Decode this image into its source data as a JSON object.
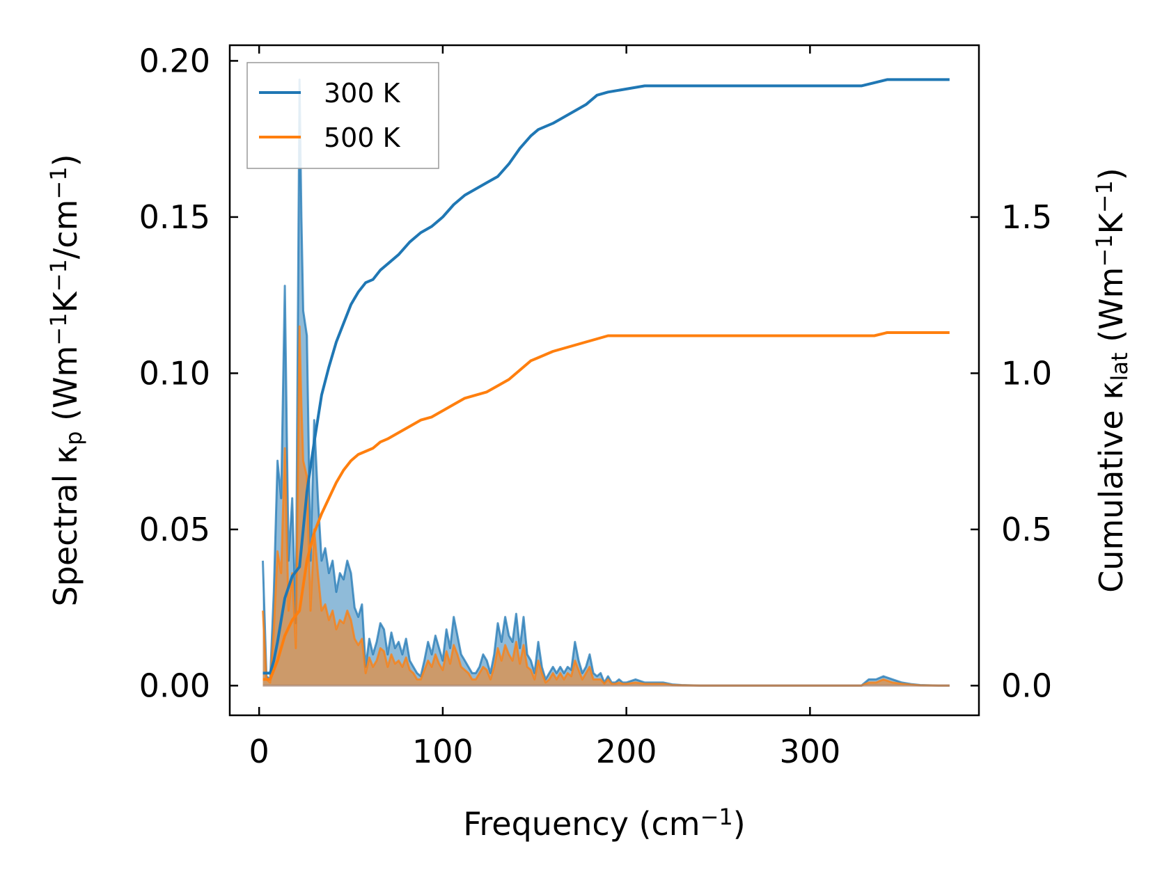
{
  "chart_data": {
    "type": "line",
    "xlabel": "Frequency (cm",
    "xlabel_sup": "−1",
    "xlabel_end": ")",
    "ylabel_left": {
      "a": "Spectral κ",
      "sub": "p",
      "b": " (Wm",
      "sup1": "−1",
      "c": "K",
      "sup2": "−1",
      "d": "/cm",
      "sup3": "−1",
      "e": ")"
    },
    "ylabel_right": {
      "a": "Cumulative κ",
      "sub": "lat",
      "b": " (Wm",
      "sup1": "−1",
      "c": "K",
      "sup2": "−1",
      "d": ")"
    },
    "xlim": [
      -16,
      392
    ],
    "ylim_left": [
      -0.0095,
      0.205
    ],
    "ylim_right": [
      -0.095,
      2.05
    ],
    "xticks": [
      0,
      100,
      200,
      300
    ],
    "xtick_labels": [
      "0",
      "100",
      "200",
      "300"
    ],
    "yticks_left": [
      0.0,
      0.05,
      0.1,
      0.15,
      0.2
    ],
    "ytick_labels_left": [
      "0.00",
      "0.05",
      "0.10",
      "0.15",
      "0.20"
    ],
    "yticks_right": [
      0.0,
      0.5,
      1.0,
      1.5
    ],
    "ytick_labels_right": [
      "0.0",
      "0.5",
      "1.0",
      "1.5"
    ],
    "legend": {
      "position": "top-left",
      "entries": [
        "300 K",
        "500 K"
      ]
    },
    "colors": {
      "s300": "#1f77b4",
      "s500": "#ff7f0e"
    },
    "spectral": {
      "x": [
        2,
        4,
        6,
        8,
        10,
        12,
        14,
        16,
        18,
        20,
        22,
        23,
        24,
        26,
        28,
        30,
        32,
        34,
        36,
        38,
        40,
        42,
        44,
        46,
        48,
        50,
        52,
        54,
        56,
        58,
        60,
        62,
        64,
        66,
        68,
        70,
        72,
        74,
        76,
        78,
        80,
        82,
        84,
        86,
        88,
        90,
        92,
        94,
        96,
        98,
        100,
        102,
        104,
        106,
        108,
        110,
        112,
        114,
        116,
        118,
        120,
        122,
        124,
        126,
        128,
        130,
        132,
        134,
        136,
        138,
        140,
        142,
        144,
        146,
        148,
        150,
        152,
        154,
        156,
        158,
        160,
        162,
        164,
        166,
        168,
        170,
        172,
        174,
        176,
        178,
        180,
        182,
        184,
        186,
        188,
        190,
        192,
        194,
        196,
        198,
        200,
        205,
        210,
        215,
        220,
        225,
        230,
        240,
        260,
        280,
        300,
        320,
        328,
        332,
        336,
        340,
        345,
        350,
        355,
        360,
        370,
        376
      ],
      "s300": [
        0.04,
        0.003,
        0.002,
        0.03,
        0.072,
        0.06,
        0.128,
        0.04,
        0.06,
        0.02,
        0.194,
        0.15,
        0.12,
        0.112,
        0.04,
        0.085,
        0.06,
        0.04,
        0.044,
        0.036,
        0.04,
        0.03,
        0.036,
        0.034,
        0.04,
        0.036,
        0.025,
        0.022,
        0.026,
        0.006,
        0.015,
        0.01,
        0.014,
        0.02,
        0.018,
        0.01,
        0.017,
        0.012,
        0.014,
        0.01,
        0.015,
        0.008,
        0.006,
        0.004,
        0.003,
        0.008,
        0.014,
        0.01,
        0.016,
        0.012,
        0.008,
        0.018,
        0.012,
        0.022,
        0.016,
        0.01,
        0.008,
        0.006,
        0.004,
        0.004,
        0.006,
        0.01,
        0.008,
        0.004,
        0.01,
        0.02,
        0.014,
        0.022,
        0.016,
        0.014,
        0.023,
        0.012,
        0.022,
        0.01,
        0.008,
        0.004,
        0.014,
        0.006,
        0.002,
        0.004,
        0.006,
        0.004,
        0.006,
        0.004,
        0.006,
        0.005,
        0.014,
        0.008,
        0.004,
        0.006,
        0.01,
        0.004,
        0.003,
        0.004,
        0.001,
        0.003,
        0.001,
        0.001,
        0.002,
        0.001,
        0.001,
        0.002,
        0.001,
        0.001,
        0.001,
        0.0004,
        0.0002,
        0.0,
        0.0,
        0.0,
        0.0,
        0.0,
        0.0,
        0.002,
        0.002,
        0.003,
        0.002,
        0.001,
        0.0005,
        0.0002,
        0.0,
        0.0
      ],
      "s500": [
        0.024,
        0.002,
        0.001,
        0.018,
        0.043,
        0.036,
        0.076,
        0.024,
        0.036,
        0.012,
        0.115,
        0.09,
        0.072,
        0.067,
        0.024,
        0.05,
        0.036,
        0.024,
        0.026,
        0.021,
        0.024,
        0.018,
        0.021,
        0.02,
        0.024,
        0.021,
        0.015,
        0.013,
        0.015,
        0.004,
        0.009,
        0.006,
        0.008,
        0.012,
        0.011,
        0.006,
        0.01,
        0.007,
        0.008,
        0.006,
        0.009,
        0.005,
        0.004,
        0.002,
        0.002,
        0.005,
        0.008,
        0.006,
        0.01,
        0.007,
        0.005,
        0.011,
        0.007,
        0.013,
        0.01,
        0.006,
        0.005,
        0.004,
        0.002,
        0.002,
        0.004,
        0.006,
        0.005,
        0.002,
        0.006,
        0.012,
        0.008,
        0.013,
        0.01,
        0.008,
        0.014,
        0.007,
        0.013,
        0.006,
        0.005,
        0.002,
        0.008,
        0.004,
        0.001,
        0.002,
        0.004,
        0.002,
        0.004,
        0.002,
        0.004,
        0.003,
        0.008,
        0.005,
        0.002,
        0.004,
        0.006,
        0.002,
        0.002,
        0.002,
        0.0006,
        0.002,
        0.0006,
        0.0006,
        0.001,
        0.0006,
        0.0006,
        0.001,
        0.0006,
        0.0006,
        0.0006,
        0.0002,
        0.0001,
        0.0,
        0.0,
        0.0,
        0.0,
        0.0,
        0.0,
        0.001,
        0.001,
        0.002,
        0.001,
        0.0006,
        0.0003,
        0.0001,
        0.0,
        0.0
      ]
    },
    "cumulative": {
      "x": [
        2,
        6,
        8,
        10,
        14,
        18,
        22,
        26,
        30,
        34,
        38,
        42,
        46,
        50,
        54,
        58,
        62,
        66,
        70,
        76,
        82,
        88,
        94,
        100,
        106,
        112,
        118,
        124,
        130,
        136,
        142,
        148,
        152,
        156,
        160,
        166,
        172,
        178,
        184,
        190,
        200,
        210,
        220,
        240,
        280,
        320,
        328,
        335,
        342,
        350,
        360,
        376
      ],
      "c300": [
        0.04,
        0.04,
        0.08,
        0.14,
        0.28,
        0.35,
        0.38,
        0.62,
        0.78,
        0.93,
        1.02,
        1.1,
        1.16,
        1.22,
        1.26,
        1.29,
        1.3,
        1.33,
        1.35,
        1.38,
        1.42,
        1.45,
        1.47,
        1.5,
        1.54,
        1.57,
        1.59,
        1.61,
        1.63,
        1.67,
        1.72,
        1.76,
        1.78,
        1.79,
        1.8,
        1.82,
        1.84,
        1.86,
        1.89,
        1.9,
        1.91,
        1.92,
        1.92,
        1.92,
        1.92,
        1.92,
        1.92,
        1.93,
        1.94,
        1.94,
        1.94,
        1.94
      ],
      "c500": [
        0.02,
        0.02,
        0.05,
        0.08,
        0.16,
        0.21,
        0.24,
        0.4,
        0.49,
        0.55,
        0.6,
        0.65,
        0.69,
        0.72,
        0.74,
        0.75,
        0.76,
        0.78,
        0.79,
        0.81,
        0.83,
        0.85,
        0.86,
        0.88,
        0.9,
        0.92,
        0.93,
        0.94,
        0.96,
        0.98,
        1.01,
        1.04,
        1.05,
        1.06,
        1.07,
        1.08,
        1.09,
        1.1,
        1.11,
        1.12,
        1.12,
        1.12,
        1.12,
        1.12,
        1.12,
        1.12,
        1.12,
        1.12,
        1.13,
        1.13,
        1.13,
        1.13
      ]
    }
  }
}
